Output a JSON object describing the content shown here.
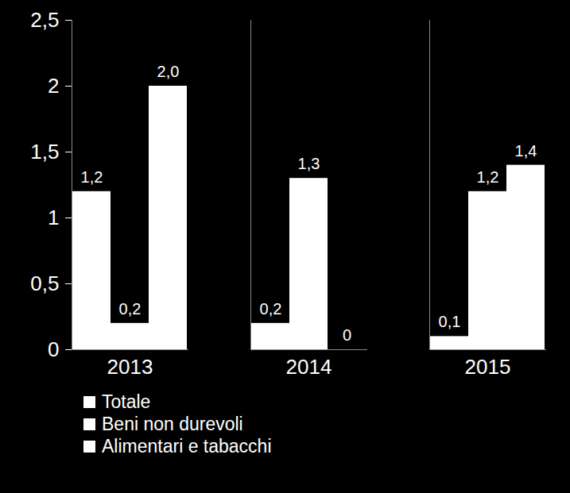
{
  "chart_data": {
    "type": "bar",
    "categories": [
      "2013",
      "2014",
      "2015"
    ],
    "series": [
      {
        "name": "Totale",
        "color": "#ffffff",
        "values": [
          1.2,
          0.2,
          0.1
        ],
        "value_labels": [
          "1,2",
          "0,2",
          "0,1"
        ]
      },
      {
        "name": "Beni non durevoli",
        "color": "#ffffff",
        "values": [
          0.2,
          1.3,
          1.2
        ],
        "value_labels": [
          "0,2",
          "1,3",
          "1,2"
        ]
      },
      {
        "name": "Alimentari e tabacchi",
        "color": "#ffffff",
        "values": [
          2.0,
          0,
          1.4
        ],
        "value_labels": [
          "2,0",
          "0",
          "1,4"
        ]
      }
    ],
    "ylim": [
      0,
      2.5
    ],
    "yticks": [
      0,
      {
        "value": 0.5,
        "label": "0,5"
      },
      1,
      {
        "value": 1.5,
        "label": "1,5"
      },
      2,
      {
        "value": 2.5,
        "label": "2,5"
      }
    ],
    "grid": false,
    "data_labels": true,
    "legend": "bottom"
  }
}
